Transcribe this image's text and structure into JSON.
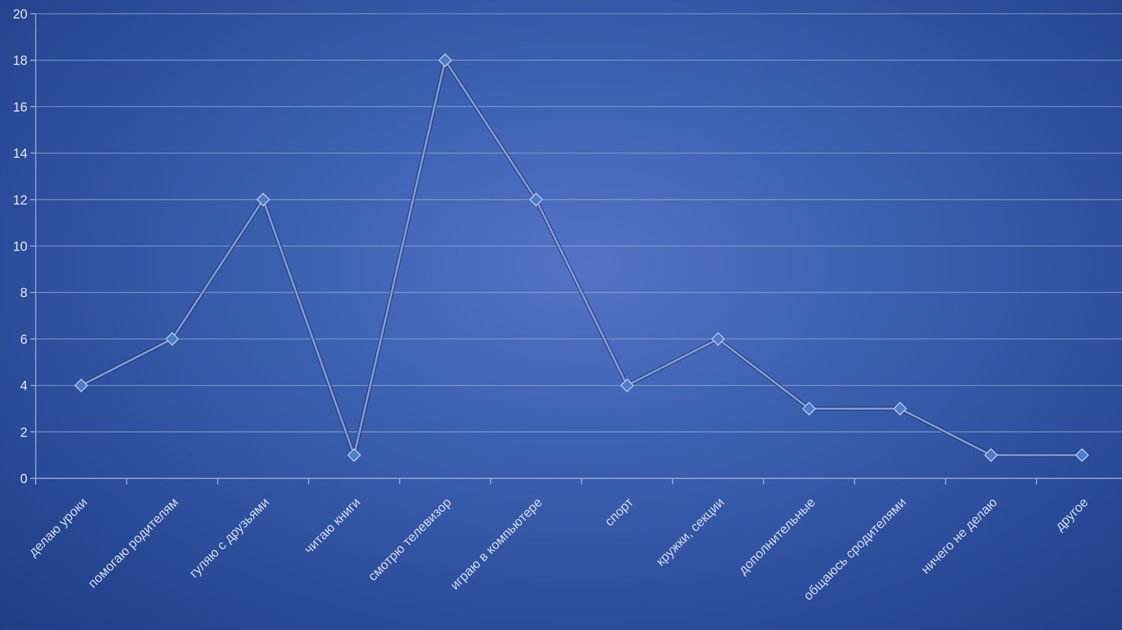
{
  "chart_data": {
    "type": "line",
    "categories": [
      "делаю уроки",
      "помогаю родителям",
      "гуляю с друзьями",
      "читаю книги",
      "смотрю телевизор",
      "играю в компьютере",
      "спорт",
      "кружки, секции",
      "дополнительные",
      "общаюсь сродителями",
      "ничего не делаю",
      "другое"
    ],
    "series": [
      {
        "values": [
          4,
          6,
          12,
          1,
          18,
          12,
          4,
          6,
          3,
          3,
          1,
          1
        ]
      }
    ],
    "y_ticks": [
      "0",
      "2",
      "4",
      "6",
      "8",
      "10",
      "12",
      "14",
      "16",
      "18",
      "20"
    ],
    "ylim": [
      0,
      20
    ],
    "grid": true,
    "legend": "none",
    "marker": "diamond",
    "colors": {
      "line": "#7f9bd0",
      "marker": "#4f7cc8",
      "grid": "#8fa6d6",
      "axis_text": "#e4eaf6"
    }
  }
}
